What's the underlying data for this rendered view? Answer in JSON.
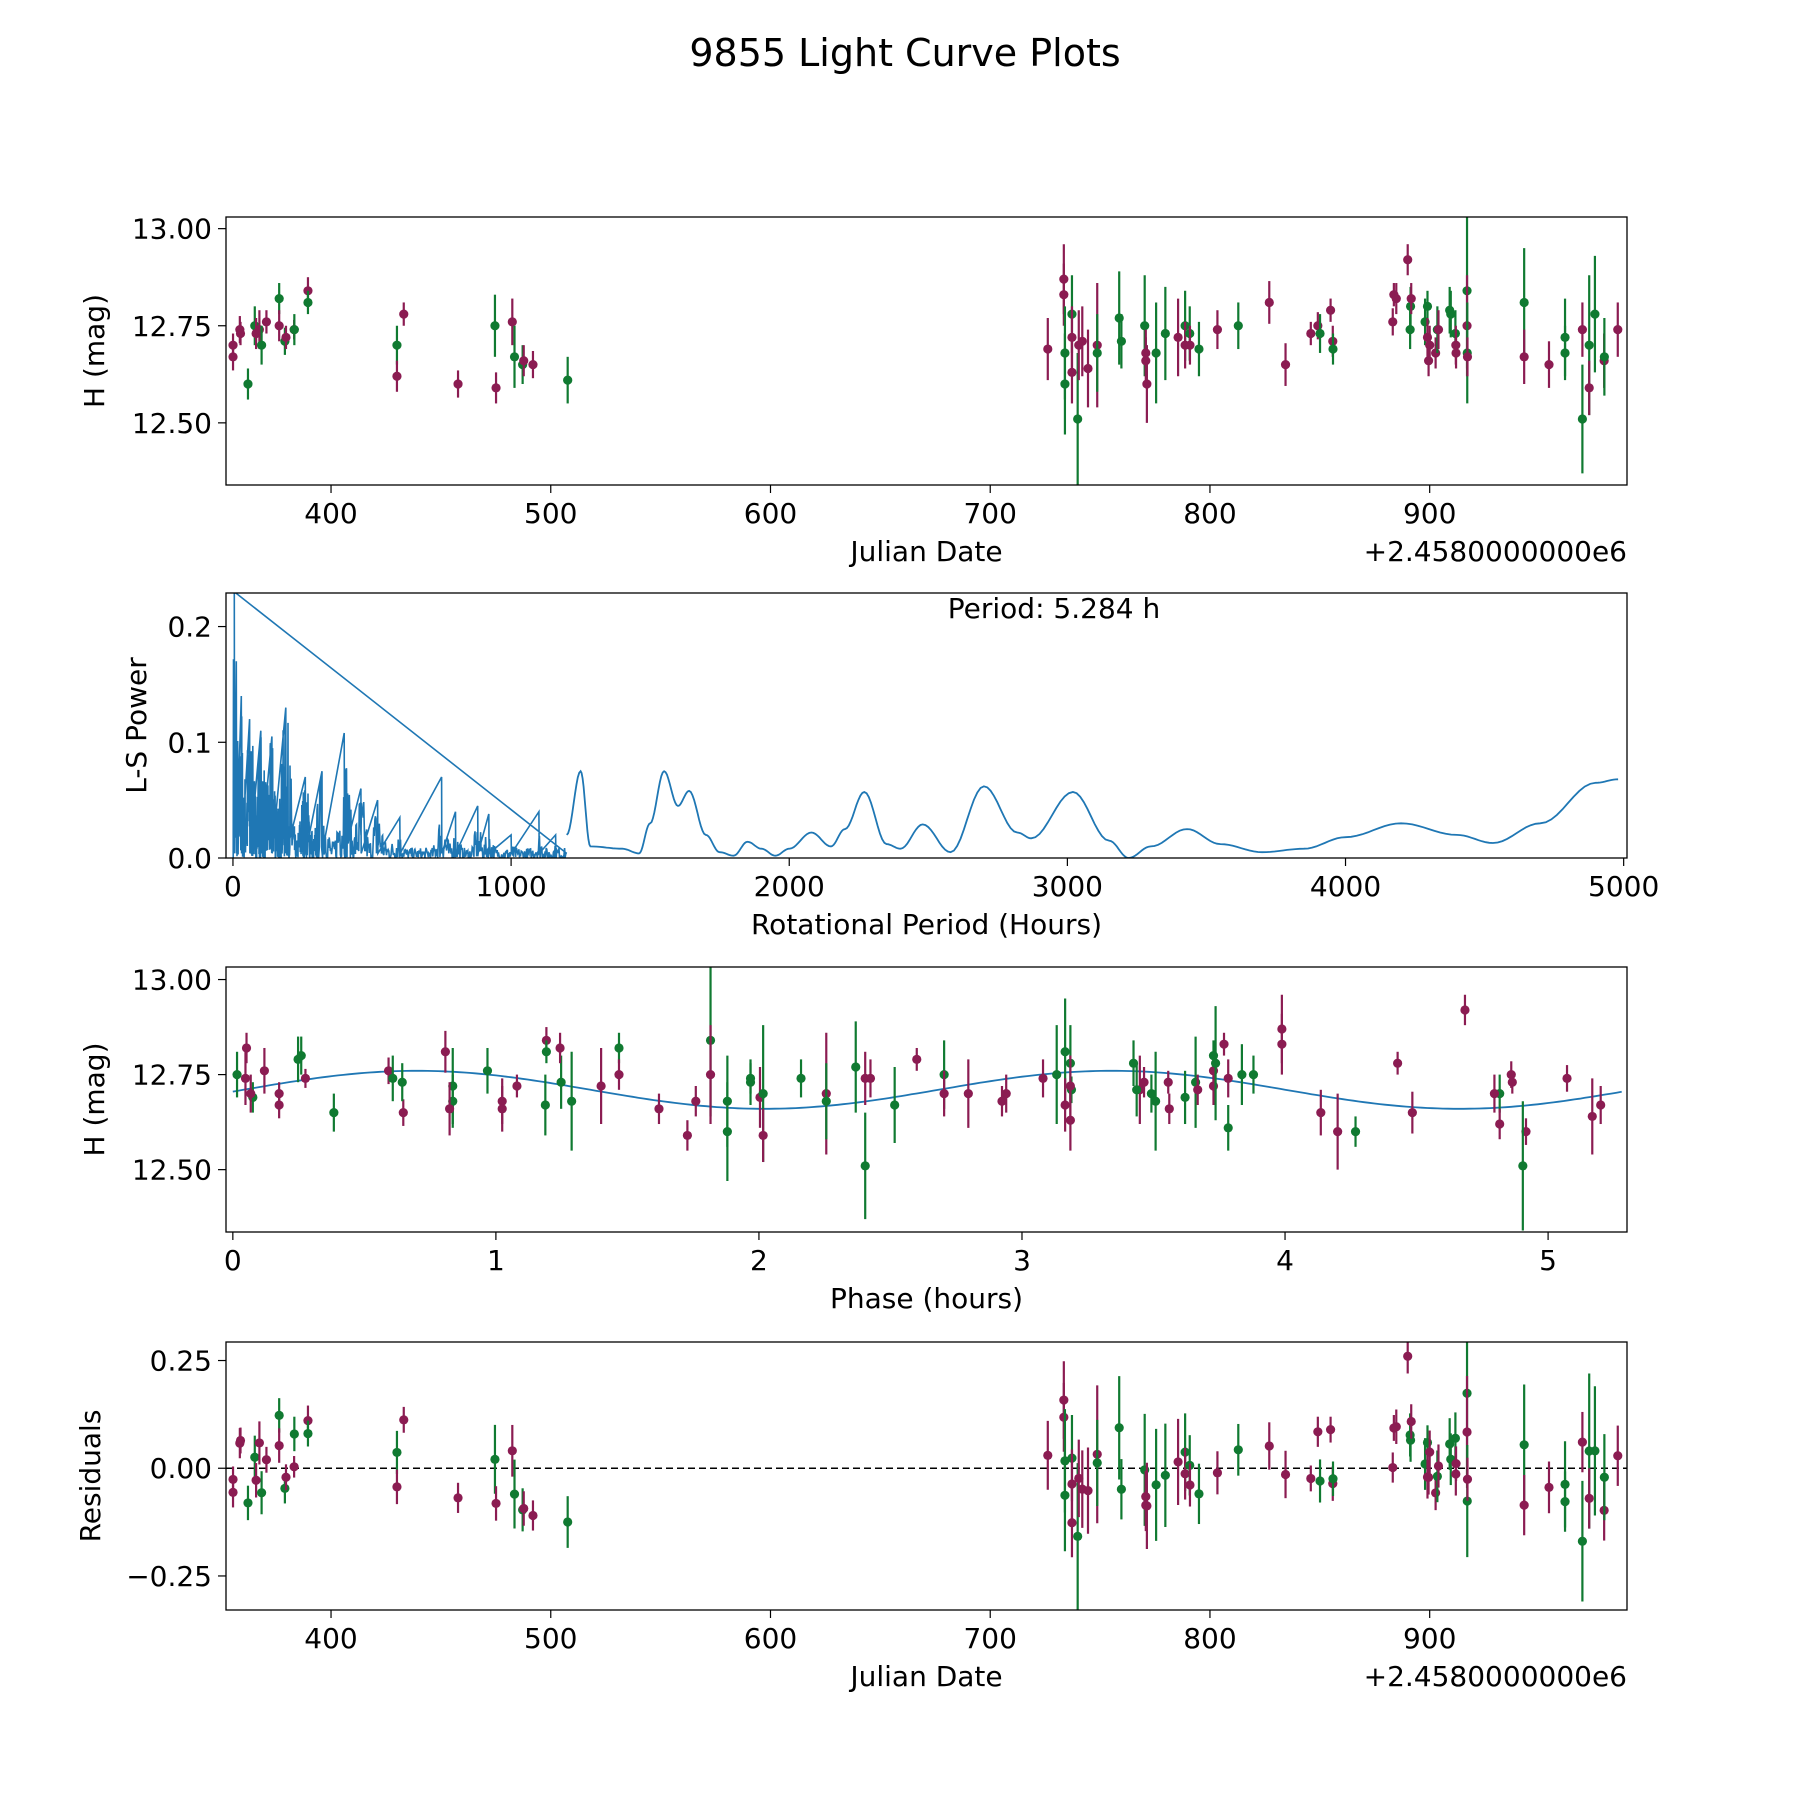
{
  "title": "9855 Light Curve Plots",
  "colors": {
    "band_a": "#8b1c52",
    "band_b": "#107a31",
    "model": "#1f77b4"
  },
  "chart_data": [
    {
      "id": "lightcurve",
      "type": "scatter",
      "xlabel": "Julian Date",
      "ylabel": "H (mag)",
      "x_offset_label": "+2.4580000000e6",
      "xlim": [
        352.2,
        989.8
      ],
      "ylim": [
        12.34,
        13.03
      ],
      "xticks": [
        400,
        500,
        600,
        700,
        800,
        900
      ],
      "yticks": [
        {
          "v": 13.0,
          "label": "13.00"
        },
        {
          "v": 12.75,
          "label": "12.75"
        },
        {
          "v": 12.5,
          "label": "12.50"
        }
      ],
      "points_format": [
        "julian_date_minus_offset",
        "H_mag",
        "error",
        "band"
      ],
      "points": [
        [
          355.4,
          12.67,
          0.035,
          "m"
        ],
        [
          355.4,
          12.7,
          0.03,
          "m"
        ],
        [
          358.5,
          12.74,
          0.035,
          "m"
        ],
        [
          358.8,
          12.73,
          0.03,
          "m"
        ],
        [
          362.2,
          12.6,
          0.04,
          "g"
        ],
        [
          365.3,
          12.75,
          0.05,
          "g"
        ],
        [
          365.9,
          12.73,
          0.04,
          "m"
        ],
        [
          367.4,
          12.74,
          0.05,
          "m"
        ],
        [
          368.4,
          12.7,
          0.05,
          "g"
        ],
        [
          370.6,
          12.76,
          0.03,
          "m"
        ],
        [
          376.4,
          12.82,
          0.04,
          "g"
        ],
        [
          376.4,
          12.75,
          0.04,
          "m"
        ],
        [
          379.0,
          12.71,
          0.035,
          "g"
        ],
        [
          379.5,
          12.72,
          0.03,
          "m"
        ],
        [
          383.2,
          12.74,
          0.025,
          "m"
        ],
        [
          383.3,
          12.74,
          0.04,
          "g"
        ],
        [
          389.5,
          12.84,
          0.035,
          "m"
        ],
        [
          389.5,
          12.81,
          0.03,
          "g"
        ],
        [
          430.0,
          12.7,
          0.05,
          "g"
        ],
        [
          430.0,
          12.62,
          0.04,
          "m"
        ],
        [
          433.1,
          12.78,
          0.03,
          "m"
        ],
        [
          457.8,
          12.6,
          0.035,
          "m"
        ],
        [
          474.6,
          12.75,
          0.08,
          "g"
        ],
        [
          475.1,
          12.59,
          0.04,
          "m"
        ],
        [
          482.5,
          12.76,
          0.06,
          "m"
        ],
        [
          483.5,
          12.67,
          0.08,
          "g"
        ],
        [
          487.2,
          12.65,
          0.05,
          "g"
        ],
        [
          487.7,
          12.66,
          0.04,
          "m"
        ],
        [
          491.9,
          12.65,
          0.035,
          "m"
        ],
        [
          507.7,
          12.61,
          0.06,
          "g"
        ],
        [
          726.2,
          12.69,
          0.08,
          "m"
        ],
        [
          733.5,
          12.87,
          0.09,
          "m"
        ],
        [
          733.5,
          12.83,
          0.08,
          "m"
        ],
        [
          734.0,
          12.6,
          0.13,
          "g"
        ],
        [
          734.0,
          12.68,
          0.12,
          "g"
        ],
        [
          737.2,
          12.78,
          0.1,
          "g"
        ],
        [
          737.2,
          12.72,
          0.08,
          "m"
        ],
        [
          737.2,
          12.63,
          0.08,
          "m"
        ],
        [
          739.8,
          12.51,
          0.17,
          "g"
        ],
        [
          740.3,
          12.7,
          0.09,
          "m"
        ],
        [
          741.9,
          12.71,
          0.09,
          "m"
        ],
        [
          744.5,
          12.64,
          0.1,
          "m"
        ],
        [
          748.7,
          12.7,
          0.16,
          "m"
        ],
        [
          748.7,
          12.68,
          0.1,
          "g"
        ],
        [
          758.7,
          12.77,
          0.12,
          "g"
        ],
        [
          759.7,
          12.71,
          0.07,
          "g"
        ],
        [
          770.3,
          12.75,
          0.13,
          "g"
        ],
        [
          770.8,
          12.68,
          0.06,
          "m"
        ],
        [
          770.8,
          12.66,
          0.06,
          "m"
        ],
        [
          771.3,
          12.6,
          0.1,
          "m"
        ],
        [
          775.5,
          12.68,
          0.13,
          "g"
        ],
        [
          779.7,
          12.73,
          0.12,
          "g"
        ],
        [
          785.5,
          12.72,
          0.1,
          "m"
        ],
        [
          788.7,
          12.75,
          0.09,
          "g"
        ],
        [
          788.7,
          12.7,
          0.06,
          "m"
        ],
        [
          790.8,
          12.73,
          0.07,
          "g"
        ],
        [
          790.9,
          12.7,
          0.05,
          "m"
        ],
        [
          795.0,
          12.69,
          0.07,
          "g"
        ],
        [
          803.4,
          12.74,
          0.05,
          "m"
        ],
        [
          812.9,
          12.75,
          0.06,
          "g"
        ],
        [
          827.0,
          12.81,
          0.055,
          "m"
        ],
        [
          834.4,
          12.65,
          0.055,
          "m"
        ],
        [
          845.9,
          12.73,
          0.03,
          "m"
        ],
        [
          849.1,
          12.75,
          0.035,
          "m"
        ],
        [
          850.1,
          12.73,
          0.05,
          "g"
        ],
        [
          854.9,
          12.79,
          0.03,
          "m"
        ],
        [
          855.9,
          12.71,
          0.04,
          "m"
        ],
        [
          856.0,
          12.69,
          0.04,
          "g"
        ],
        [
          883.2,
          12.76,
          0.035,
          "m"
        ],
        [
          883.7,
          12.83,
          0.03,
          "m"
        ],
        [
          884.8,
          12.82,
          0.04,
          "m"
        ],
        [
          890.0,
          12.92,
          0.04,
          "m"
        ],
        [
          891.1,
          12.74,
          0.05,
          "g"
        ],
        [
          891.3,
          12.8,
          0.05,
          "g"
        ],
        [
          891.6,
          12.82,
          0.04,
          "m"
        ],
        [
          897.9,
          12.76,
          0.06,
          "g"
        ],
        [
          899.0,
          12.8,
          0.04,
          "g"
        ],
        [
          899.0,
          12.72,
          0.05,
          "m"
        ],
        [
          899.5,
          12.66,
          0.04,
          "m"
        ],
        [
          900.0,
          12.7,
          0.05,
          "m"
        ],
        [
          902.7,
          12.68,
          0.04,
          "m"
        ],
        [
          903.5,
          12.74,
          0.06,
          "g"
        ],
        [
          904.0,
          12.74,
          0.05,
          "m"
        ],
        [
          909.1,
          12.79,
          0.06,
          "g"
        ],
        [
          909.6,
          12.78,
          0.06,
          "g"
        ],
        [
          911.7,
          12.73,
          0.06,
          "g"
        ],
        [
          911.9,
          12.7,
          0.05,
          "m"
        ],
        [
          912.0,
          12.68,
          0.04,
          "m"
        ],
        [
          917.0,
          12.84,
          0.2,
          "g"
        ],
        [
          917.0,
          12.75,
          0.13,
          "m"
        ],
        [
          917.1,
          12.68,
          0.13,
          "g"
        ],
        [
          917.2,
          12.67,
          0.05,
          "m"
        ],
        [
          943.0,
          12.81,
          0.14,
          "g"
        ],
        [
          943.0,
          12.67,
          0.07,
          "m"
        ],
        [
          954.3,
          12.65,
          0.06,
          "m"
        ],
        [
          961.6,
          12.72,
          0.1,
          "g"
        ],
        [
          961.6,
          12.68,
          0.07,
          "g"
        ],
        [
          969.5,
          12.74,
          0.07,
          "m"
        ],
        [
          969.5,
          12.51,
          0.14,
          "g"
        ],
        [
          972.6,
          12.7,
          0.18,
          "g"
        ],
        [
          972.6,
          12.59,
          0.07,
          "m"
        ],
        [
          975.2,
          12.78,
          0.15,
          "g"
        ],
        [
          979.4,
          12.66,
          0.07,
          "m"
        ],
        [
          979.5,
          12.67,
          0.1,
          "g"
        ],
        [
          985.6,
          12.74,
          0.07,
          "m"
        ]
      ]
    },
    {
      "id": "periodogram",
      "type": "line",
      "xlabel": "Rotational Period (Hours)",
      "ylabel": "L-S Power",
      "annotation": "Period: 5.284 h",
      "period_hours": 5.284,
      "xlim": [
        -25,
        5012
      ],
      "ylim": [
        0,
        0.229
      ],
      "xticks": [
        0,
        1000,
        2000,
        3000,
        4000,
        5000
      ],
      "yticks": [
        {
          "v": 0.0,
          "label": "0.0"
        },
        {
          "v": 0.1,
          "label": "0.1"
        },
        {
          "v": 0.2,
          "label": "0.2"
        }
      ],
      "dense_region_peaks": [
        [
          5,
          0.23
        ],
        [
          12,
          0.17
        ],
        [
          30,
          0.14
        ],
        [
          60,
          0.12
        ],
        [
          100,
          0.11
        ],
        [
          140,
          0.105
        ],
        [
          190,
          0.13
        ],
        [
          260,
          0.07
        ],
        [
          320,
          0.075
        ],
        [
          400,
          0.108
        ],
        [
          460,
          0.06
        ],
        [
          520,
          0.05
        ],
        [
          600,
          0.035
        ],
        [
          750,
          0.07
        ],
        [
          800,
          0.04
        ],
        [
          880,
          0.045
        ],
        [
          920,
          0.038
        ],
        [
          1000,
          0.02
        ],
        [
          1100,
          0.04
        ],
        [
          1160,
          0.02
        ]
      ],
      "smooth_region": [
        [
          1200,
          0.02
        ],
        [
          1250,
          0.075
        ],
        [
          1285,
          0.01
        ],
        [
          1400,
          0.008
        ],
        [
          1460,
          0.004
        ],
        [
          1500,
          0.03
        ],
        [
          1550,
          0.075
        ],
        [
          1600,
          0.045
        ],
        [
          1640,
          0.058
        ],
        [
          1700,
          0.02
        ],
        [
          1750,
          0.005
        ],
        [
          1800,
          0.002
        ],
        [
          1850,
          0.014
        ],
        [
          1900,
          0.008
        ],
        [
          1950,
          0.002
        ],
        [
          2000,
          0.008
        ],
        [
          2080,
          0.022
        ],
        [
          2150,
          0.01
        ],
        [
          2200,
          0.025
        ],
        [
          2270,
          0.057
        ],
        [
          2350,
          0.012
        ],
        [
          2400,
          0.008
        ],
        [
          2480,
          0.029
        ],
        [
          2580,
          0.005
        ],
        [
          2700,
          0.062
        ],
        [
          2820,
          0.022
        ],
        [
          2870,
          0.017
        ],
        [
          3020,
          0.057
        ],
        [
          3150,
          0.015
        ],
        [
          3220,
          0.0
        ],
        [
          3300,
          0.01
        ],
        [
          3430,
          0.025
        ],
        [
          3550,
          0.012
        ],
        [
          3700,
          0.005
        ],
        [
          3850,
          0.008
        ],
        [
          4000,
          0.018
        ],
        [
          4200,
          0.03
        ],
        [
          4400,
          0.02
        ],
        [
          4530,
          0.013
        ],
        [
          4700,
          0.03
        ],
        [
          4900,
          0.065
        ],
        [
          4980,
          0.068
        ]
      ]
    },
    {
      "id": "phased",
      "type": "scatter",
      "xlabel": "Phase (hours)",
      "ylabel": "H (mag)",
      "xlim": [
        -0.026,
        5.3
      ],
      "ylim": [
        12.336,
        13.033
      ],
      "xticks": [
        0,
        1,
        2,
        3,
        4,
        5
      ],
      "yticks": [
        {
          "v": 13.0,
          "label": "13.00"
        },
        {
          "v": 12.75,
          "label": "12.75"
        },
        {
          "v": 12.5,
          "label": "12.50"
        }
      ],
      "model": {
        "mean": 12.71,
        "amplitude": 0.05,
        "peak_phase": 0.7,
        "cycles_per_period": 2
      }
    },
    {
      "id": "residuals",
      "type": "scatter",
      "xlabel": "Julian Date",
      "ylabel": "Residuals",
      "x_offset_label": "+2.4580000000e6",
      "xlim": [
        352.2,
        989.8
      ],
      "ylim": [
        -0.329,
        0.293
      ],
      "xticks": [
        400,
        500,
        600,
        700,
        800,
        900
      ],
      "yticks": [
        {
          "v": 0.25,
          "label": "0.25"
        },
        {
          "v": 0.0,
          "label": "0.00"
        },
        {
          "v": -0.25,
          "label": "−0.25"
        }
      ]
    }
  ]
}
